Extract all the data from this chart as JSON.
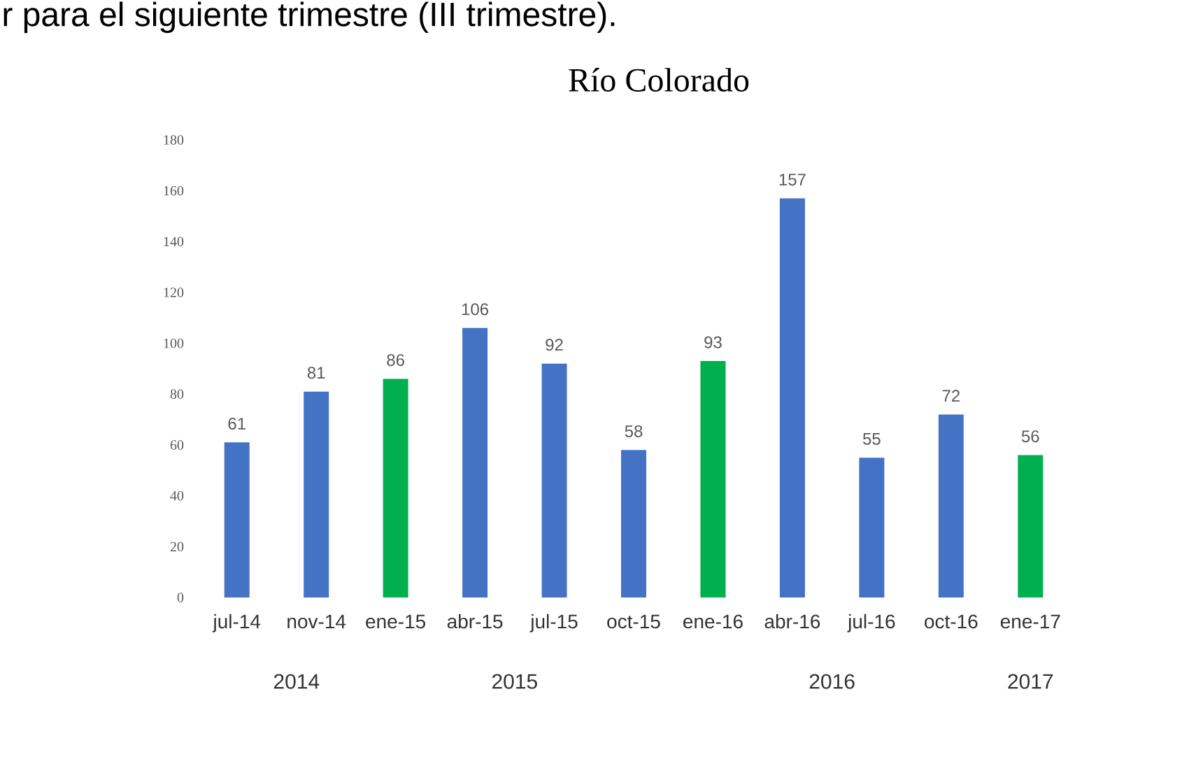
{
  "chart_data": {
    "type": "bar",
    "title": "Río Colorado",
    "categories": [
      "jul-14",
      "nov-14",
      "ene-15",
      "abr-15",
      "jul-15",
      "oct-15",
      "ene-16",
      "abr-16",
      "jul-16",
      "oct-16",
      "ene-17"
    ],
    "values": [
      61,
      81,
      86,
      106,
      92,
      58,
      93,
      157,
      55,
      72,
      56
    ],
    "colors": [
      "#4472c4",
      "#4472c4",
      "#00b050",
      "#4472c4",
      "#4472c4",
      "#4472c4",
      "#00b050",
      "#4472c4",
      "#4472c4",
      "#4472c4",
      "#00b050"
    ],
    "ylim": [
      0,
      180
    ],
    "yticks": [
      0,
      20,
      40,
      60,
      80,
      100,
      120,
      140,
      160,
      180
    ],
    "data_labels": true,
    "annotations": [
      "r para el siguiente trimestre (III trimestre).",
      "2014",
      "2015",
      "2016",
      "2017"
    ]
  }
}
